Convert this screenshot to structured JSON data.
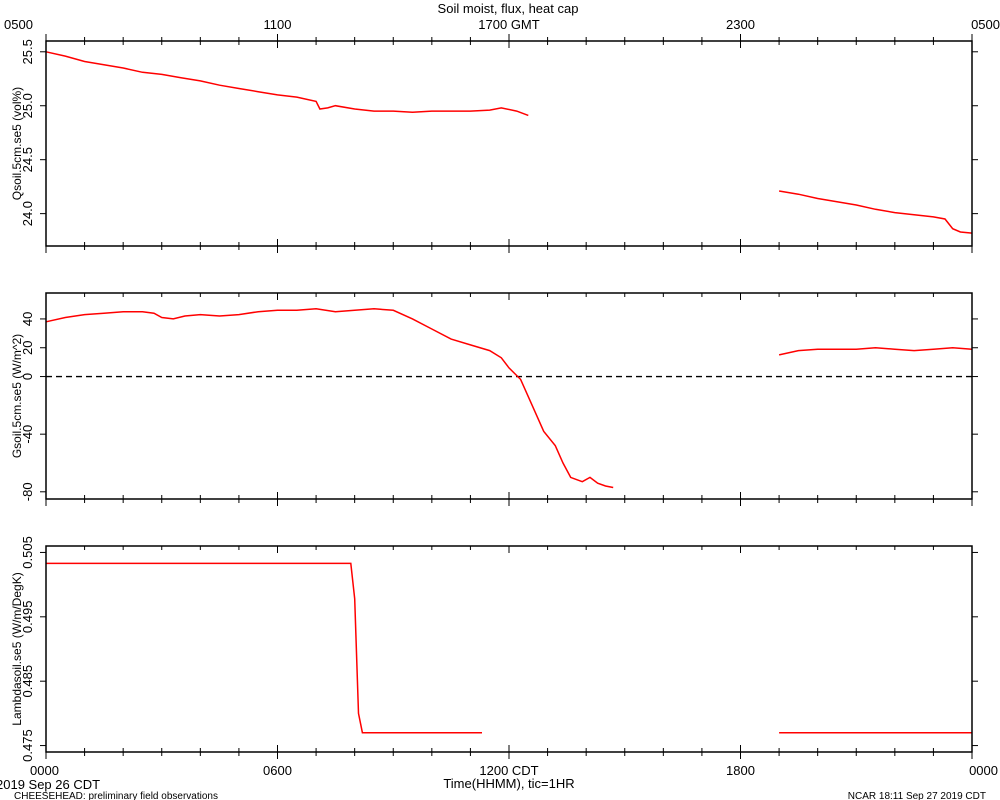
{
  "chart_data": {
    "title": "Soil moist, flux, heat cap",
    "type": "line",
    "top_axis": {
      "labels": [
        "0500",
        "1100",
        "1700 GMT",
        "2300",
        "0500"
      ],
      "hours": [
        0,
        6,
        12,
        18,
        24
      ]
    },
    "bottom_axis": {
      "labels": [
        "0000",
        "0600",
        "1200 CDT",
        "1800",
        "0000"
      ],
      "hours": [
        0,
        6,
        12,
        18,
        24
      ],
      "xlabel": "Time(HHMM), tic=1HR",
      "xlim": [
        0,
        24
      ]
    },
    "date_label": "2019 Sep 26 CDT",
    "footer_left": "CHEESEHEAD: preliminary field observations",
    "footer_right": "NCAR 18:11 Sep 27 2019 CDT",
    "series_color": "#ff0000",
    "panels": [
      {
        "ylabel": "Qsoil.5cm.se5 (vol%)",
        "ylim": [
          23.7,
          25.6
        ],
        "ticks": [
          24.0,
          24.5,
          25.0,
          25.5
        ],
        "tick_labels": [
          "24.0",
          "24.5",
          "25.0",
          "25.5"
        ],
        "zero_line": false,
        "segments": [
          [
            [
              0,
              25.5
            ],
            [
              0.5,
              25.46
            ],
            [
              1.0,
              25.41
            ],
            [
              1.5,
              25.38
            ],
            [
              2.0,
              25.35
            ],
            [
              2.5,
              25.31
            ],
            [
              3.0,
              25.29
            ],
            [
              3.5,
              25.26
            ],
            [
              4.0,
              25.23
            ],
            [
              4.5,
              25.19
            ],
            [
              5.0,
              25.16
            ],
            [
              5.5,
              25.13
            ],
            [
              6.0,
              25.1
            ],
            [
              6.5,
              25.08
            ],
            [
              7.0,
              25.04
            ],
            [
              7.1,
              24.97
            ],
            [
              7.3,
              24.98
            ],
            [
              7.5,
              25.0
            ],
            [
              8.0,
              24.97
            ],
            [
              8.5,
              24.95
            ],
            [
              9.0,
              24.95
            ],
            [
              9.5,
              24.94
            ],
            [
              10.0,
              24.95
            ],
            [
              10.5,
              24.95
            ],
            [
              11.0,
              24.95
            ],
            [
              11.5,
              24.96
            ],
            [
              11.8,
              24.98
            ],
            [
              12.2,
              24.95
            ],
            [
              12.5,
              24.91
            ]
          ],
          [
            [
              19.0,
              24.21
            ],
            [
              19.5,
              24.18
            ],
            [
              20.0,
              24.14
            ],
            [
              20.5,
              24.11
            ],
            [
              21.0,
              24.08
            ],
            [
              21.5,
              24.04
            ],
            [
              22.0,
              24.01
            ],
            [
              22.5,
              23.99
            ],
            [
              23.0,
              23.97
            ],
            [
              23.3,
              23.95
            ],
            [
              23.5,
              23.86
            ],
            [
              23.7,
              23.83
            ],
            [
              24.0,
              23.82
            ]
          ]
        ]
      },
      {
        "ylabel": "Gsoil.5cm.se5 (W/m^2)",
        "ylim": [
          -85,
          58
        ],
        "ticks": [
          -80,
          -40,
          0,
          20,
          40
        ],
        "tick_labels": [
          "-80",
          "-40",
          "0",
          "20",
          "40"
        ],
        "zero_line": true,
        "segments": [
          [
            [
              0,
              38
            ],
            [
              0.5,
              41
            ],
            [
              1.0,
              43
            ],
            [
              1.5,
              44
            ],
            [
              2.0,
              45
            ],
            [
              2.5,
              45
            ],
            [
              2.8,
              44
            ],
            [
              3.0,
              41
            ],
            [
              3.3,
              40
            ],
            [
              3.6,
              42
            ],
            [
              4.0,
              43
            ],
            [
              4.5,
              42
            ],
            [
              5.0,
              43
            ],
            [
              5.5,
              45
            ],
            [
              6.0,
              46
            ],
            [
              6.5,
              46
            ],
            [
              7.0,
              47
            ],
            [
              7.5,
              45
            ],
            [
              8.0,
              46
            ],
            [
              8.5,
              47
            ],
            [
              9.0,
              46
            ],
            [
              9.5,
              40
            ],
            [
              10.0,
              33
            ],
            [
              10.5,
              26
            ],
            [
              11.0,
              22
            ],
            [
              11.5,
              18
            ],
            [
              11.8,
              13
            ],
            [
              12.0,
              6
            ],
            [
              12.3,
              -2
            ],
            [
              12.6,
              -20
            ],
            [
              12.9,
              -38
            ],
            [
              13.2,
              -48
            ],
            [
              13.4,
              -60
            ],
            [
              13.6,
              -70
            ],
            [
              13.9,
              -73
            ],
            [
              14.1,
              -70
            ],
            [
              14.3,
              -74
            ],
            [
              14.5,
              -76
            ],
            [
              14.7,
              -77
            ]
          ],
          [
            [
              19.0,
              15
            ],
            [
              19.5,
              18
            ],
            [
              20.0,
              19
            ],
            [
              21.0,
              19
            ],
            [
              21.5,
              20
            ],
            [
              22.0,
              19
            ],
            [
              22.5,
              18
            ],
            [
              23.0,
              19
            ],
            [
              23.5,
              20
            ],
            [
              24.0,
              19
            ]
          ]
        ]
      },
      {
        "ylabel": "Lambdasoil.se5 (W/m/DegK)",
        "ylim": [
          0.474,
          0.506
        ],
        "ticks": [
          0.475,
          0.485,
          0.495,
          0.505
        ],
        "tick_labels": [
          "0.475",
          "0.485",
          "0.495",
          "0.505"
        ],
        "zero_line": false,
        "segments": [
          [
            [
              0,
              0.5033
            ],
            [
              7.9,
              0.5033
            ],
            [
              8.0,
              0.4978
            ],
            [
              8.1,
              0.48
            ],
            [
              8.2,
              0.477
            ],
            [
              11.3,
              0.477
            ]
          ],
          [
            [
              19.0,
              0.477
            ],
            [
              24.0,
              0.477
            ]
          ]
        ]
      }
    ]
  }
}
